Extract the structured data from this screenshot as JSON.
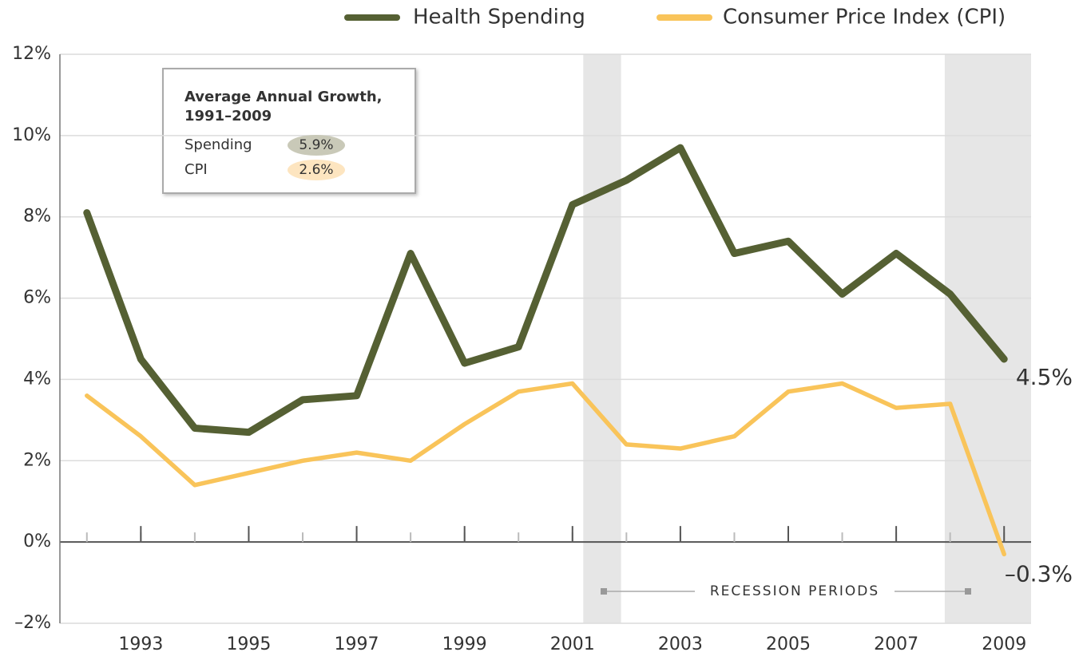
{
  "chart_data": {
    "type": "line",
    "x": [
      1992,
      1993,
      1994,
      1995,
      1996,
      1997,
      1998,
      1999,
      2000,
      2001,
      2002,
      2003,
      2004,
      2005,
      2006,
      2007,
      2008,
      2009
    ],
    "xlim": [
      1991.5,
      2009.5
    ],
    "xticks": [
      1993,
      1995,
      1997,
      1999,
      2001,
      2003,
      2005,
      2007,
      2009
    ],
    "ylim": [
      -2,
      12
    ],
    "yticks": [
      {
        "value": -2,
        "label": "–2%"
      },
      {
        "value": 0,
        "label": "0%"
      },
      {
        "value": 2,
        "label": "2%"
      },
      {
        "value": 4,
        "label": "4%"
      },
      {
        "value": 6,
        "label": "6%"
      },
      {
        "value": 8,
        "label": "8%"
      },
      {
        "value": 10,
        "label": "10%"
      },
      {
        "value": 12,
        "label": "12%"
      }
    ],
    "grid": true,
    "legend": "top-right",
    "series": [
      {
        "name": "Health Spending",
        "color": "#556033",
        "values": [
          8.1,
          4.5,
          2.8,
          2.7,
          3.5,
          3.6,
          7.1,
          4.4,
          4.8,
          8.3,
          8.9,
          9.7,
          7.1,
          7.4,
          6.1,
          7.1,
          6.1,
          4.5
        ],
        "value_labels": [
          null,
          null,
          null,
          null,
          null,
          null,
          null,
          null,
          null,
          null,
          null,
          null,
          null,
          null,
          null,
          null,
          null,
          "4.5%"
        ]
      },
      {
        "name": "Consumer Price Index (CPI)",
        "color": "#f9c45a",
        "values": [
          3.6,
          2.6,
          1.4,
          1.7,
          2.0,
          2.2,
          2.0,
          2.9,
          3.7,
          3.9,
          2.4,
          2.3,
          2.6,
          3.7,
          3.9,
          3.3,
          3.4,
          -0.3
        ],
        "value_labels": [
          null,
          null,
          null,
          null,
          null,
          null,
          null,
          null,
          null,
          null,
          null,
          null,
          null,
          null,
          null,
          null,
          null,
          "–0.3%"
        ]
      }
    ],
    "recessions": {
      "label": "RECESSION PERIODS",
      "periods": [
        [
          2001.2,
          2001.9
        ],
        [
          2007.9,
          2009.5
        ]
      ]
    },
    "inset": {
      "title": [
        "Average Annual Growth,",
        "1991–2009"
      ],
      "items": [
        {
          "label": "Spending",
          "value": 5.9,
          "value_label": "5.9%",
          "color": "#c9c9b8"
        },
        {
          "label": "CPI",
          "value": 2.6,
          "value_label": "2.6%",
          "color": "#fde5c0"
        }
      ]
    }
  }
}
